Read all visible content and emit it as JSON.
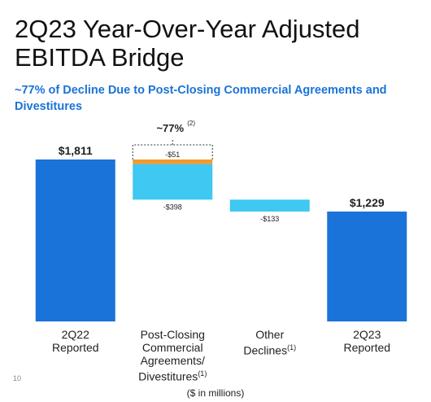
{
  "page_number": "10",
  "chart_data": {
    "type": "waterfall",
    "title": "2Q23 Year-Over-Year Adjusted EBITDA Bridge",
    "subtitle": "~77% of Decline Due to Post-Closing Commercial Agreements and Divestitures",
    "note": "($ in millions)",
    "categories": [
      "2Q22\nReported",
      "Post-Closing\nCommercial\nAgreements/\nDivestitures",
      "Other\nDeclines",
      "2Q23\nReported"
    ],
    "category_notes": [
      null,
      "(1)",
      "(1)",
      null
    ],
    "steps": [
      {
        "category": 0,
        "value": 1811,
        "value_label": "$1,811",
        "color": "#1a73d8"
      },
      {
        "category": 1,
        "value": -51,
        "value_label": "-$51",
        "color": "#f29a2e"
      },
      {
        "category": 1,
        "value": -398,
        "value_label": "-$398",
        "color": "#3ec8f2"
      },
      {
        "category": 2,
        "value": -133,
        "value_label": "-$133",
        "color": "#3ec8f2"
      },
      {
        "category": 3,
        "value": 1229,
        "value_label": "$1,229",
        "color": "#1a73d8"
      }
    ],
    "annotation": {
      "category": 1,
      "text": "~77%",
      "note": "(2)"
    }
  }
}
